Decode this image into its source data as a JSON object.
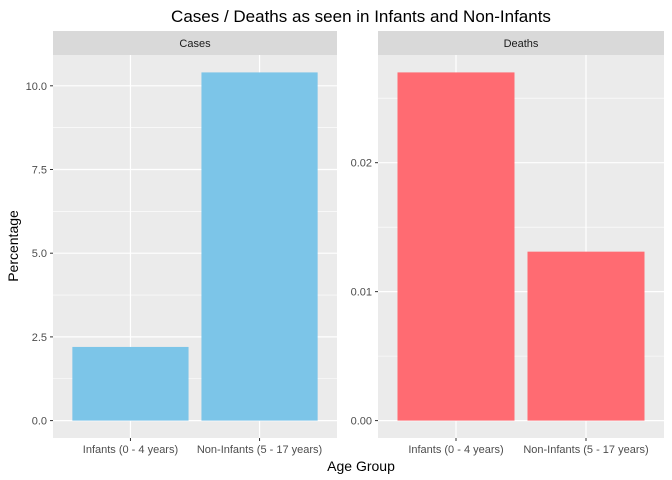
{
  "chart_data": {
    "type": "bar",
    "title": "Cases / Deaths as seen in Infants and Non-Infants",
    "xlabel": "Age Group",
    "ylabel": "Percentage",
    "grid": true,
    "legend": "none",
    "categories": [
      "Infants (0 - 4 years)",
      "Non-Infants (5 - 17 years)"
    ],
    "facets": [
      {
        "name": "Cases",
        "color": "#7CC5E8",
        "values": [
          2.2,
          10.4
        ],
        "ylim": [
          -0.52,
          10.92
        ],
        "yticks": [
          0,
          2.5,
          5,
          7.5,
          10
        ],
        "ytick_labels": [
          "0.0",
          "2.5",
          "5.0",
          "7.5",
          "10.0"
        ]
      },
      {
        "name": "Deaths",
        "color": "#FF6B72",
        "values": [
          0.027,
          0.0131
        ],
        "ylim": [
          -0.00135,
          0.02835
        ],
        "yticks": [
          0,
          0.01,
          0.02
        ],
        "ytick_labels": [
          "0.00",
          "0.01",
          "0.02"
        ]
      }
    ]
  }
}
